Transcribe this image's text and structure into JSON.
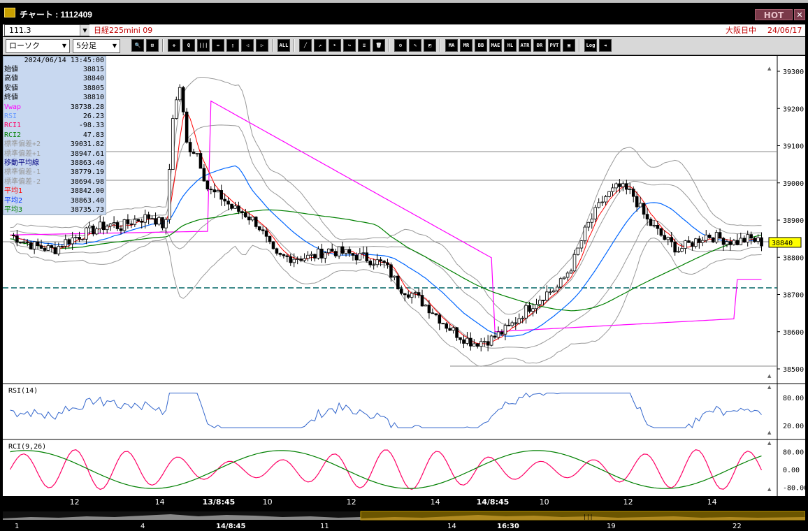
{
  "window": {
    "title": "チャート : 1112409",
    "hot_label": "HOT",
    "close_glyph": "✕"
  },
  "infobar": {
    "code": "111.3",
    "symbol": "日経225mini 09",
    "exchange": "大阪日中",
    "date": "24/06/17"
  },
  "toolbar": {
    "chart_type": "ローソク",
    "interval": "5分足",
    "buttons": [
      {
        "name": "zoom-button",
        "glyph": "🔍"
      },
      {
        "name": "cursor-button",
        "glyph": "⊞"
      },
      {
        "name": "crosshair-button",
        "glyph": "✥"
      },
      {
        "name": "magnify-button",
        "glyph": "Q"
      },
      {
        "name": "bar-width-button",
        "glyph": "|||"
      },
      {
        "name": "bar-spacing-button",
        "glyph": "↔"
      },
      {
        "name": "scroll-lock-button",
        "glyph": "▯"
      },
      {
        "name": "fit-left-button",
        "glyph": "◁"
      },
      {
        "name": "fit-right-button",
        "glyph": "▷"
      },
      {
        "name": "all-button",
        "glyph": "ALL"
      },
      {
        "name": "draw-line-button",
        "glyph": "╱"
      },
      {
        "name": "draw-arrow-button",
        "glyph": "↗"
      },
      {
        "name": "pointer-button",
        "glyph": "➤"
      },
      {
        "name": "redo-button",
        "glyph": "↪"
      },
      {
        "name": "list-button",
        "glyph": "≡"
      },
      {
        "name": "trash-button",
        "glyph": "🗑"
      },
      {
        "name": "settings-button",
        "glyph": "⚙"
      },
      {
        "name": "tool-button",
        "glyph": "✎"
      },
      {
        "name": "color-button",
        "glyph": "◩"
      },
      {
        "name": "ma-button",
        "glyph": "MA"
      },
      {
        "name": "mr-button",
        "glyph": "MR"
      },
      {
        "name": "bb-button",
        "glyph": "BB"
      },
      {
        "name": "mae-button",
        "glyph": "MAE"
      },
      {
        "name": "hl-button",
        "glyph": "HL"
      },
      {
        "name": "atr-button",
        "glyph": "ATR"
      },
      {
        "name": "dr-button",
        "glyph": "ĐR"
      },
      {
        "name": "pvt-button",
        "glyph": "PVT"
      },
      {
        "name": "frame-button",
        "glyph": "▣"
      },
      {
        "name": "log-button",
        "glyph": "Log"
      },
      {
        "name": "export-button",
        "glyph": "⇥"
      }
    ]
  },
  "info_panel": {
    "datetime": "2024/06/14  13:45:00",
    "rows": [
      {
        "label": "始値",
        "value": "38815",
        "color": "#000000"
      },
      {
        "label": "高値",
        "value": "38840",
        "color": "#000000"
      },
      {
        "label": "安値",
        "value": "38805",
        "color": "#000000"
      },
      {
        "label": "終値",
        "value": "38810",
        "color": "#000000"
      },
      {
        "label": "Vwap",
        "value": "38738.28",
        "color": "#ff00ff"
      },
      {
        "label": "RSI",
        "value": "26.23",
        "color": "#6699ff"
      },
      {
        "label": "RCI1",
        "value": "-98.33",
        "color": "#ff0066"
      },
      {
        "label": "RCI2",
        "value": "47.83",
        "color": "#008000"
      },
      {
        "label": "標準偏差+2",
        "value": "39031.82",
        "color": "#999999"
      },
      {
        "label": "標準偏差+1",
        "value": "38947.61",
        "color": "#999999"
      },
      {
        "label": "移動平均線",
        "value": "38863.40",
        "color": "#000080"
      },
      {
        "label": "標準偏差-1",
        "value": "38779.19",
        "color": "#999999"
      },
      {
        "label": "標準偏差-2",
        "value": "38694.98",
        "color": "#999999"
      },
      {
        "label": "平均1",
        "value": "38842.00",
        "color": "#ff0000"
      },
      {
        "label": "平均2",
        "value": "38863.40",
        "color": "#0033ff"
      },
      {
        "label": "平均3",
        "value": "38735.73",
        "color": "#008000"
      }
    ]
  },
  "price_axis": {
    "ticks": [
      "39300",
      "39200",
      "39100",
      "39000",
      "38900",
      "38800",
      "38700",
      "38600",
      "38500"
    ],
    "current_price": "38840"
  },
  "rsi_pane": {
    "label": "RSI(14)",
    "ticks": [
      "80.00",
      "20.00"
    ]
  },
  "rci_pane": {
    "label": "RCI(9,26)",
    "ticks": [
      "80.00",
      "0.00",
      "-80.00"
    ]
  },
  "time_axis": [
    "12",
    "14",
    "13/8:45",
    "10",
    "12",
    "14",
    "14/8:45",
    "10",
    "12",
    "14"
  ],
  "nav_axis": [
    "1",
    "4",
    "14/8:45",
    "11",
    "14",
    "16:30",
    "19",
    "22"
  ],
  "colors": {
    "candle_up": "#ffffff",
    "candle_down": "#000000",
    "ma_short": "#ff0000",
    "ma_mid": "#0066ff",
    "ma_long": "#008000",
    "vwap": "#ff00ff",
    "bands": "#999999",
    "rsi": "#3366cc",
    "rci1": "#ff0066",
    "rci2": "#008000"
  }
}
